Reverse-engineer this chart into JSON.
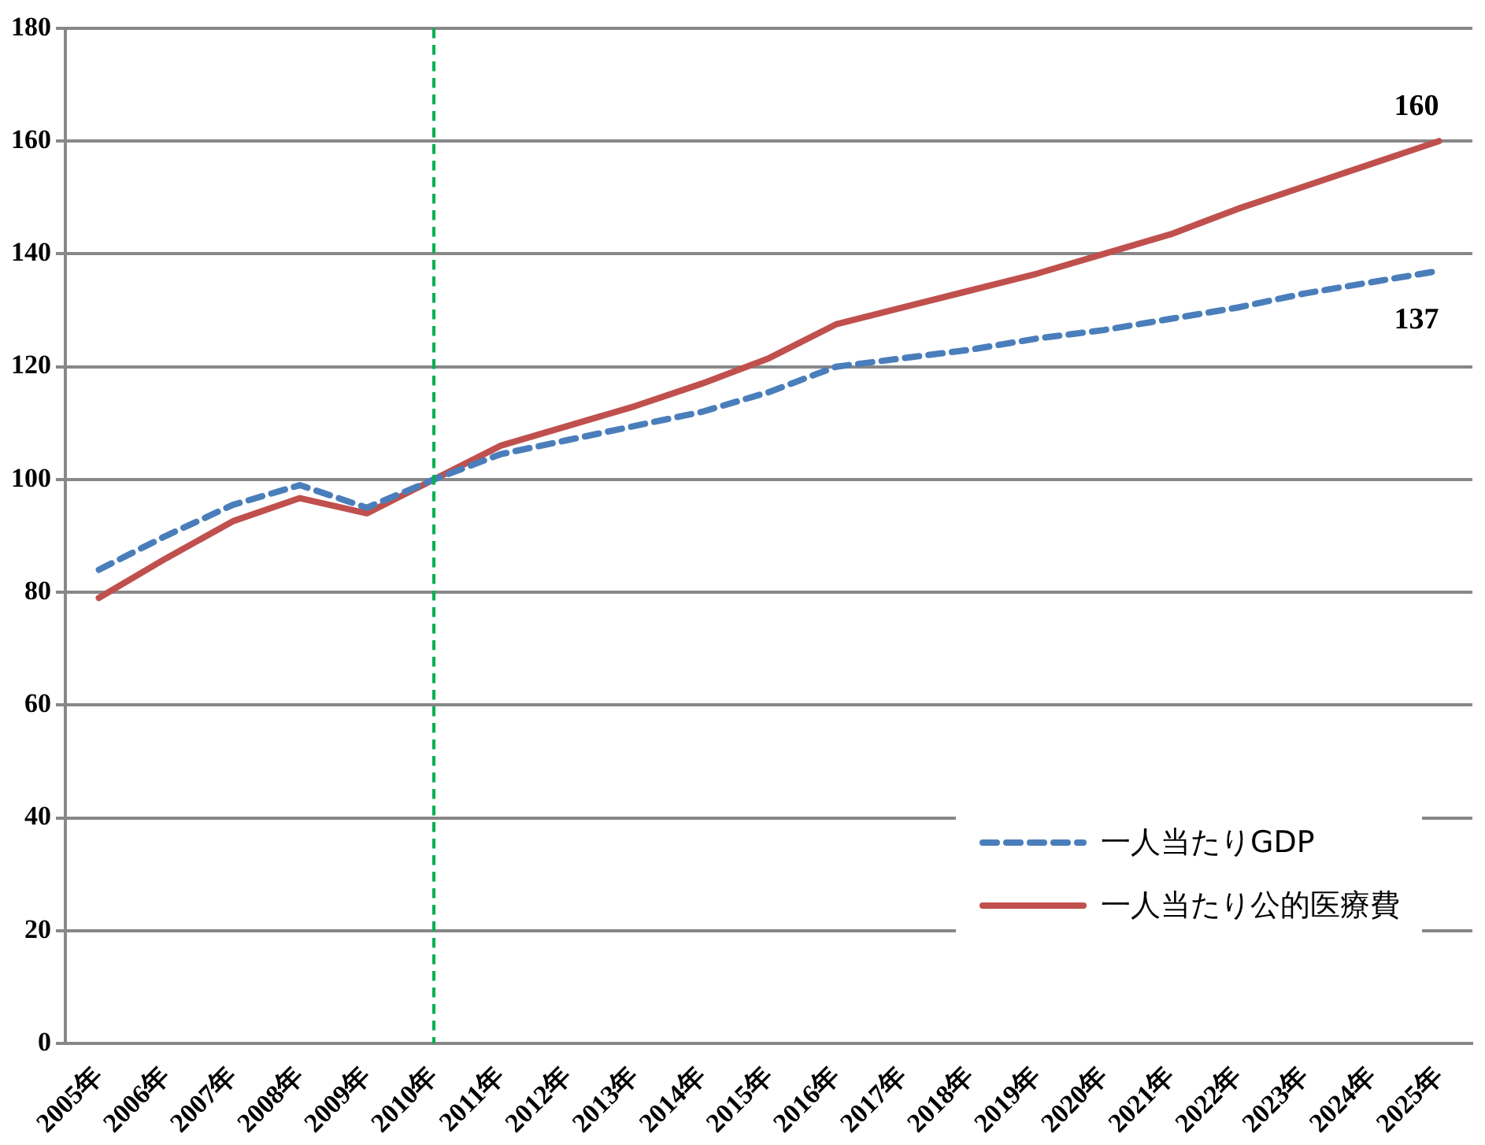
{
  "chart_data": {
    "type": "line",
    "categories": [
      "2005年",
      "2006年",
      "2007年",
      "2008年",
      "2009年",
      "2010年",
      "2011年",
      "2012年",
      "2013年",
      "2014年",
      "2015年",
      "2016年",
      "2017年",
      "2018年",
      "2019年",
      "2020年",
      "2021年",
      "2022年",
      "2023年",
      "2024年",
      "2025年"
    ],
    "series": [
      {
        "name": "一人当たりGDP",
        "color": "#4a7ebb",
        "line_style": "dashed",
        "values": [
          84,
          90,
          95.5,
          99,
          95,
          100,
          104.5,
          107,
          109.5,
          112,
          115.5,
          120,
          121.5,
          123,
          125,
          126.5,
          128.5,
          130.5,
          133,
          135,
          137
        ],
        "value_labels": [
          null,
          null,
          null,
          null,
          null,
          null,
          null,
          null,
          null,
          null,
          null,
          null,
          null,
          null,
          null,
          null,
          null,
          null,
          null,
          null,
          "137"
        ]
      },
      {
        "name": "一人当たり公的医療費",
        "color": "#c0504d",
        "line_style": "solid",
        "values": [
          79,
          86,
          92.6,
          96.7,
          94,
          100,
          106,
          109.5,
          113,
          117,
          121.5,
          127.5,
          130.5,
          133.5,
          136.5,
          140,
          143.5,
          148,
          152,
          156,
          160
        ],
        "value_labels": [
          null,
          null,
          null,
          null,
          null,
          null,
          null,
          null,
          null,
          null,
          null,
          null,
          null,
          null,
          null,
          null,
          null,
          null,
          null,
          null,
          "160"
        ]
      }
    ],
    "ylim": [
      0,
      180
    ],
    "yticks": [
      0,
      20,
      40,
      60,
      80,
      100,
      120,
      140,
      160,
      180
    ],
    "grid": "y",
    "legend": "bottom right",
    "marker": "none",
    "ref_lines": [
      {
        "axis": "x",
        "value": "2010年",
        "color": "#00b050",
        "line_style": "dashed"
      }
    ]
  }
}
